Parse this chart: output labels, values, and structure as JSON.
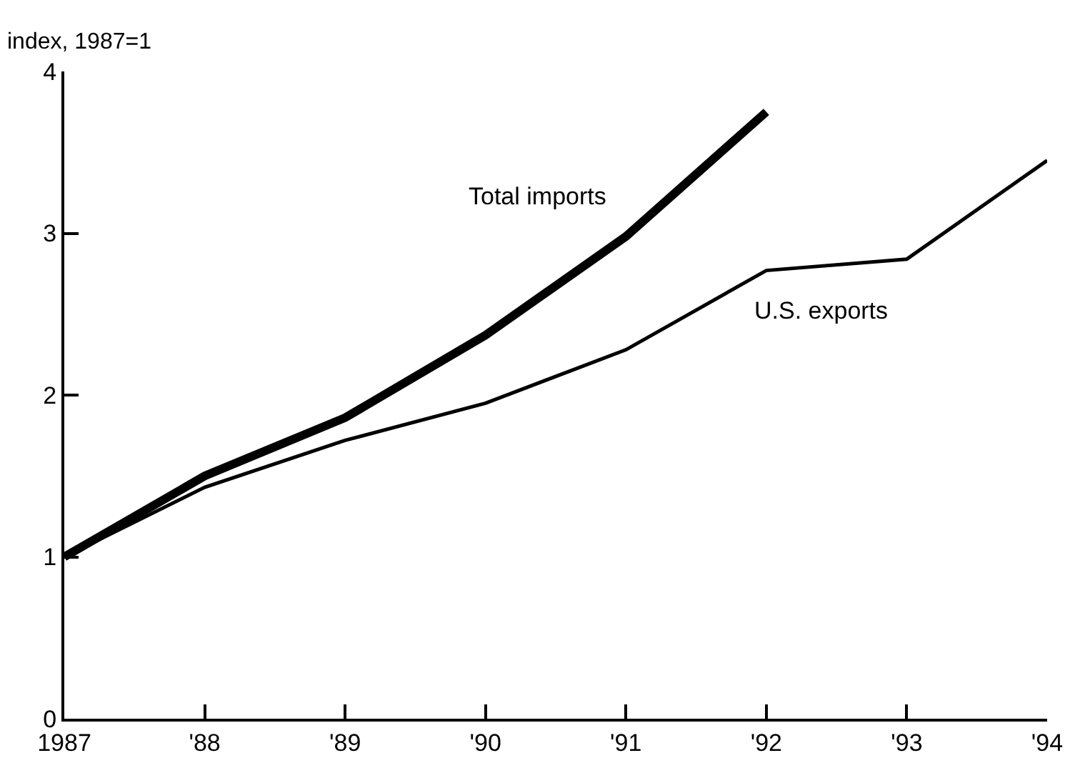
{
  "chart_data": {
    "type": "line",
    "ylabel": "index, 1987=1",
    "x": [
      1987,
      1988,
      1989,
      1990,
      1991,
      1992,
      1993,
      1994
    ],
    "series": [
      {
        "name": "Total imports",
        "color": "#000000",
        "values": [
          1.0,
          1.5,
          1.86,
          2.37,
          2.98,
          3.75,
          null,
          null
        ]
      },
      {
        "name": "U.S. exports",
        "color": "#000000",
        "values": [
          1.0,
          1.43,
          1.72,
          1.95,
          2.28,
          2.77,
          2.84,
          3.45
        ]
      }
    ],
    "xlim": [
      1987,
      1994
    ],
    "xticks": [
      1987,
      {
        "value": 1988,
        "label": "'88"
      },
      {
        "value": 1989,
        "label": "'89"
      },
      {
        "value": 1990,
        "label": "'90"
      },
      {
        "value": 1991,
        "label": "'91"
      },
      {
        "value": 1992,
        "label": "'92"
      },
      {
        "value": 1993,
        "label": "'93"
      },
      {
        "value": 1994,
        "label": "'94"
      }
    ],
    "ylim": [
      0,
      4
    ],
    "yticks": [
      0,
      1,
      2,
      3,
      4
    ],
    "grid": false,
    "legend": false,
    "marker": "none",
    "line_style": "solid"
  }
}
